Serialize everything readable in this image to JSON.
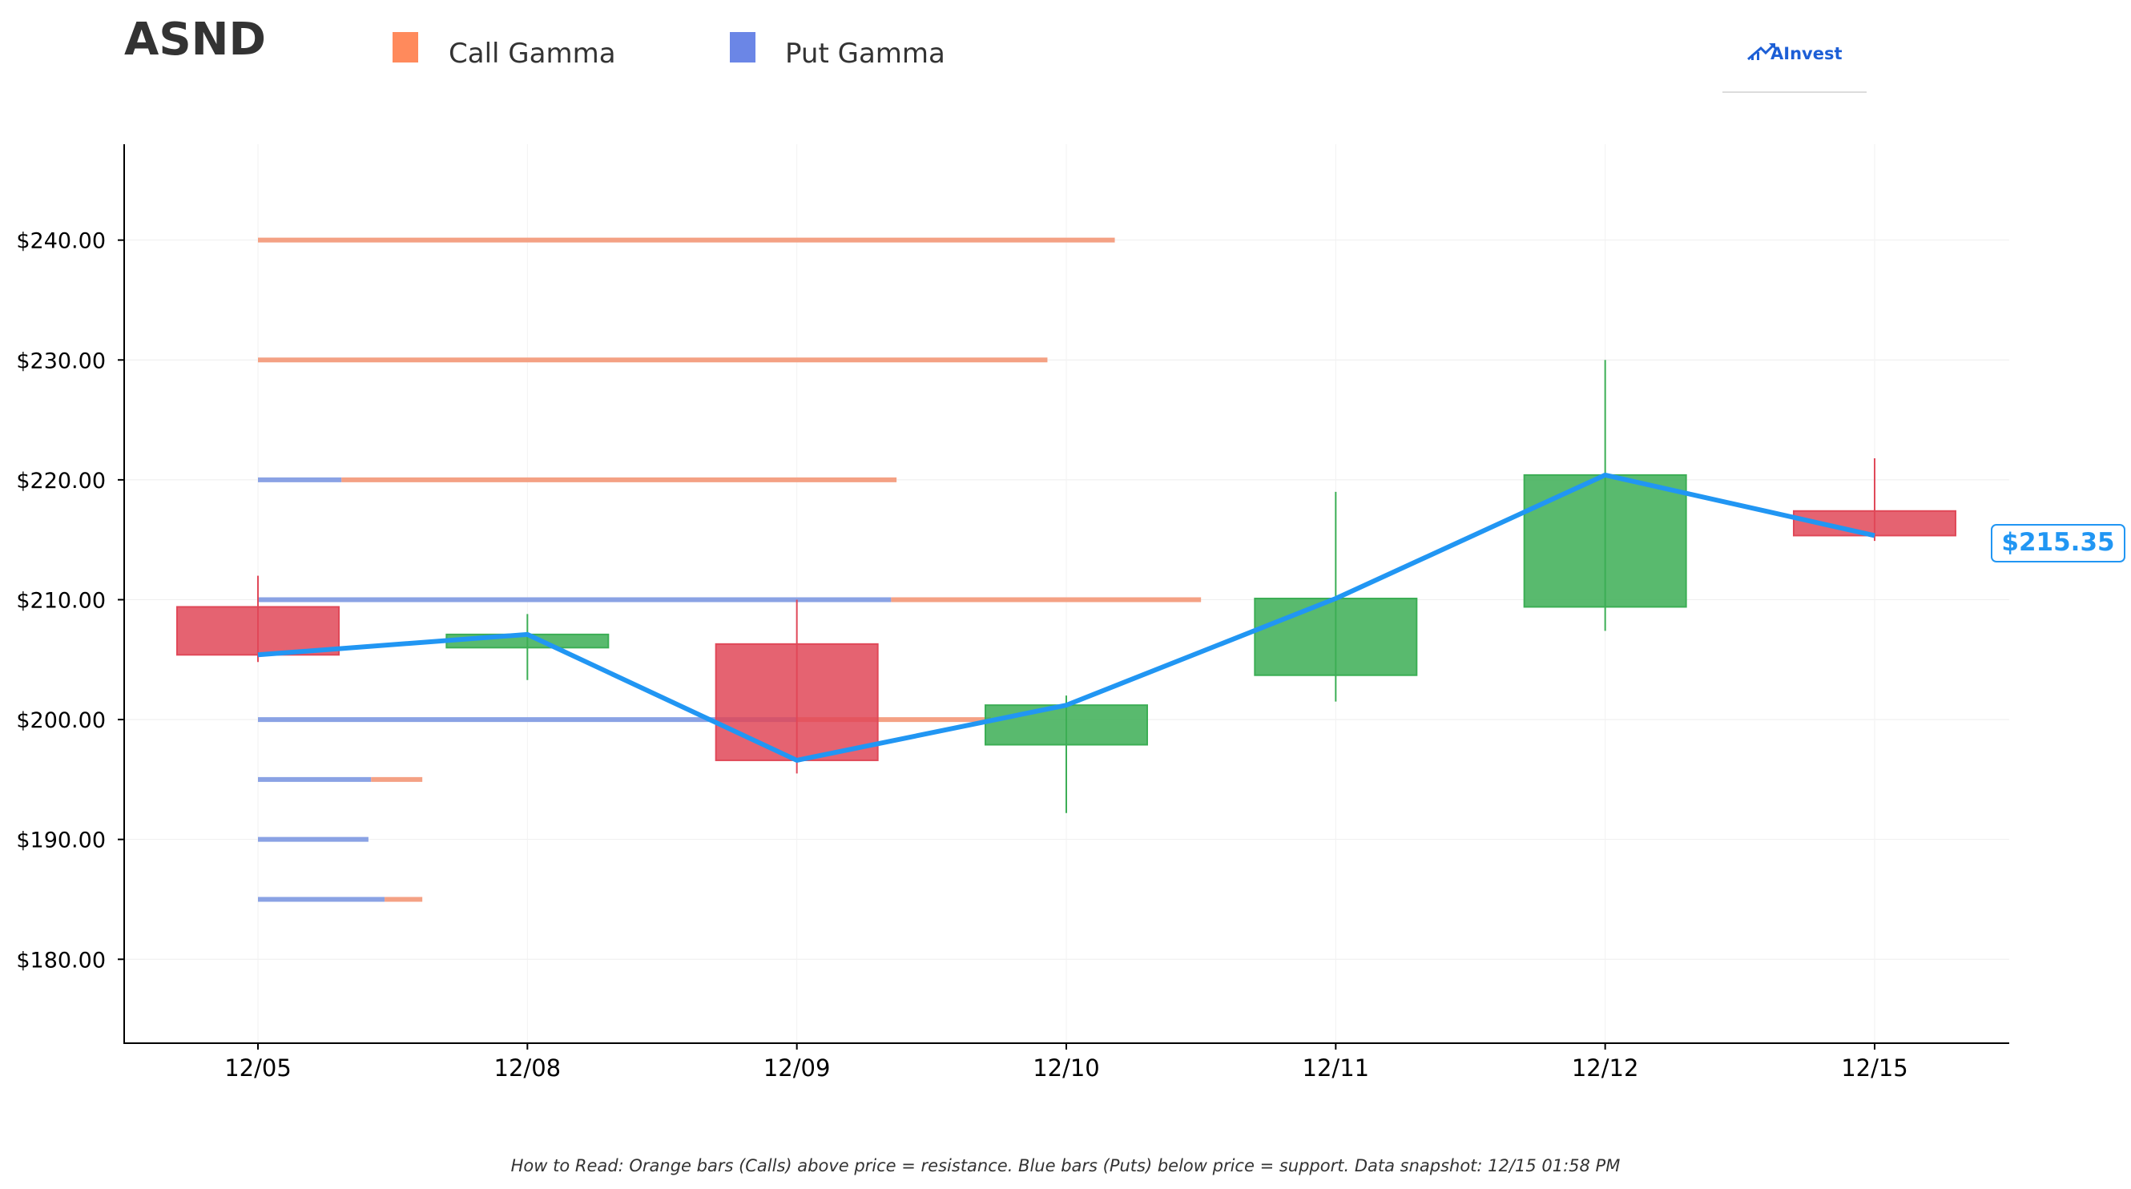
{
  "ticker": "ASND",
  "legend": {
    "call": {
      "label": "Call Gamma",
      "color": "#ff8a5c"
    },
    "put": {
      "label": "Put Gamma",
      "color": "#6b86e6"
    }
  },
  "logo": {
    "text": "AInvest",
    "icon": "chart-arrow-icon"
  },
  "footer_note": "How to Read: Orange bars (Calls) above price = resistance. Blue bars (Puts) below price = support. Data snapshot: 12/15 01:58 PM",
  "colors": {
    "up": "#3cae55",
    "down": "#e04858",
    "price_line": "#2196F3",
    "call_bar": "#f4a184",
    "put_bar": "#8aa2e4"
  },
  "chart_data": {
    "type": "candlestick",
    "categories": [
      "12/05",
      "12/08",
      "12/09",
      "12/10",
      "12/11",
      "12/12",
      "12/15"
    ],
    "ylim": [
      173,
      248
    ],
    "yticks": [
      180,
      190,
      200,
      210,
      220,
      230,
      240
    ],
    "ytick_labels": [
      "$180.00",
      "$190.00",
      "$200.00",
      "$210.00",
      "$220.00",
      "$230.00",
      "$240.00"
    ],
    "grid": true,
    "candles": [
      {
        "date": "12/05",
        "open": 209.4,
        "high": 212.0,
        "low": 204.8,
        "close": 205.4
      },
      {
        "date": "12/08",
        "open": 206.0,
        "high": 208.8,
        "low": 203.3,
        "close": 207.1
      },
      {
        "date": "12/09",
        "open": 206.3,
        "high": 210.0,
        "low": 195.5,
        "close": 196.6
      },
      {
        "date": "12/10",
        "open": 197.9,
        "high": 202.0,
        "low": 192.2,
        "close": 201.2
      },
      {
        "date": "12/11",
        "open": 203.7,
        "high": 219.0,
        "low": 201.5,
        "close": 210.1
      },
      {
        "date": "12/12",
        "open": 209.4,
        "high": 230.0,
        "low": 207.4,
        "close": 220.4
      },
      {
        "date": "12/15",
        "open": 217.4,
        "high": 221.8,
        "low": 214.9,
        "close": 215.35
      }
    ],
    "price_line": [
      205.4,
      207.1,
      196.6,
      201.2,
      210.1,
      220.4,
      215.35
    ],
    "last_price_label": "$215.35",
    "gamma_levels": [
      {
        "strike": 240,
        "put": 0,
        "call": 3.18
      },
      {
        "strike": 230,
        "put": 0,
        "call": 2.93
      },
      {
        "strike": 220,
        "put": 0.31,
        "call": 2.06
      },
      {
        "strike": 210,
        "put": 2.35,
        "call": 1.15
      },
      {
        "strike": 200,
        "put": 2.0,
        "call": 0.72
      },
      {
        "strike": 195,
        "put": 0.42,
        "call": 0.19
      },
      {
        "strike": 190,
        "put": 0.41,
        "call": 0
      },
      {
        "strike": 185,
        "put": 0.47,
        "call": 0.14
      }
    ]
  }
}
